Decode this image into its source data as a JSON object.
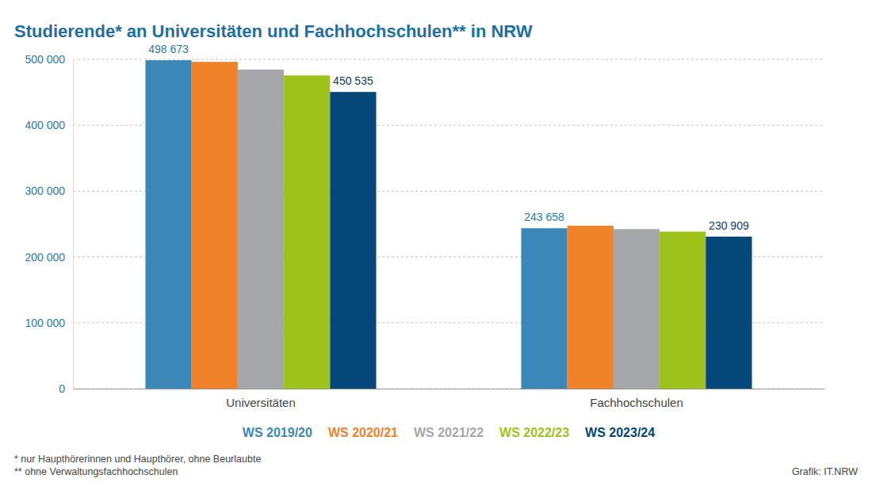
{
  "chart_data": {
    "type": "bar",
    "title": "Studierende* an Universitäten und Fachhochschulen** in NRW",
    "categories": [
      "Universitäten",
      "Fachhochschulen"
    ],
    "series": [
      {
        "name": "WS 2019/20",
        "color": "#3a87b8",
        "values": [
          498673,
          243658
        ],
        "value_labels": [
          "498 673",
          "243 658"
        ]
      },
      {
        "name": "WS 2020/21",
        "color": "#f0822a",
        "values": [
          496200,
          247400
        ]
      },
      {
        "name": "WS 2021/22",
        "color": "#a5a7aa",
        "values": [
          484600,
          242300
        ]
      },
      {
        "name": "WS 2022/23",
        "color": "#9dc31a",
        "values": [
          475600,
          238500
        ]
      },
      {
        "name": "WS 2023/24",
        "color": "#06477a",
        "values": [
          450535,
          230909
        ],
        "value_labels": [
          "450 535",
          "230 909"
        ]
      }
    ],
    "ylim": [
      0,
      500000
    ],
    "yticks": [
      0,
      {
        "value": 100000,
        "label": "100 000"
      },
      {
        "value": 200000,
        "label": "200 000"
      },
      {
        "value": 300000,
        "label": "300 000"
      },
      {
        "value": 400000,
        "label": "400 000"
      },
      {
        "value": 500000,
        "label": "500 000"
      }
    ],
    "grid": true,
    "data_labels": true,
    "legend": "bottom",
    "annotations": [
      "* nur Haupthörerinnen und Haupthörer, ohne Beurlaubte",
      "** ohne Verwaltungsfachhochschulen"
    ],
    "source": "Grafik: IT.NRW"
  }
}
